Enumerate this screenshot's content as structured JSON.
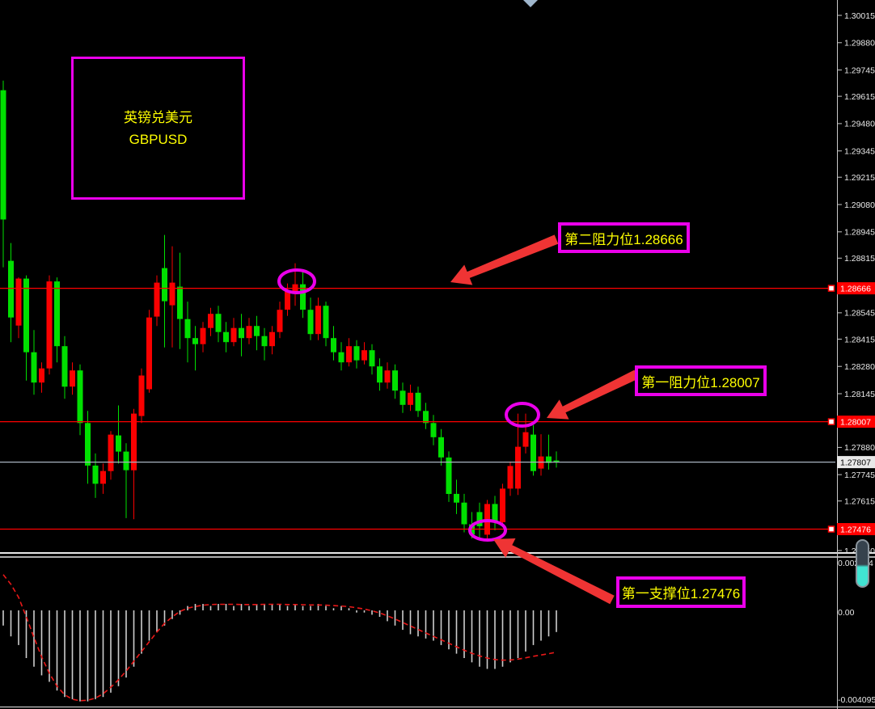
{
  "symbol_box": {
    "name_cn": "英镑兑美元",
    "ticker": "GBPUSD"
  },
  "annotations": {
    "resistance2_label": "第二阻力位1.28666",
    "resistance1_label": "第一阻力位1.28007",
    "support1_label": "第一支撑位1.27476"
  },
  "price_axis": {
    "labels": [
      "1.30015",
      "1.29880",
      "1.29745",
      "1.29615",
      "1.29480",
      "1.29345",
      "1.29215",
      "1.29080",
      "1.28945",
      "1.28815",
      "1.28545",
      "1.28415",
      "1.28280",
      "1.28145",
      "1.27880",
      "1.27745",
      "1.27615",
      "1.27350"
    ],
    "level_badges": [
      "1.28666",
      "1.28007",
      "1.27476"
    ],
    "current_badge": "1.27807"
  },
  "indicator_axis": {
    "top": "0.002264",
    "zero": "0.00",
    "bottom": "-0.004095"
  },
  "colors": {
    "up_candle": "#fa0000",
    "down_candle": "#00e000",
    "level_line": "#ff0000",
    "current_line": "#aab4c2",
    "annotation": "#ea00ea",
    "arrow": "#ef3434",
    "label_text": "#ffff00",
    "axis_text": "#e8e8e8",
    "histogram": "#cdcdcd",
    "signal": "#e81818",
    "badge_level_bg": "#ff0000",
    "badge_current_bg": "#e8e8e8"
  },
  "chart_data": {
    "type": "candlestick",
    "title": "GBPUSD 英镑兑美元",
    "up_means": "red = bullish, green = bearish (CN convention)",
    "y_axis_range": [
      1.2735,
      1.30015
    ],
    "levels": {
      "resistance2": 1.28666,
      "resistance1": 1.28007,
      "support1": 1.27476,
      "current": 1.27807
    },
    "candles": [
      [
        1.29645,
        1.29692,
        1.2877,
        1.29006
      ],
      [
        1.28802,
        1.2889,
        1.284,
        1.28522
      ],
      [
        1.28482,
        1.2872,
        1.2842,
        1.28714
      ],
      [
        1.28714,
        1.2873,
        1.2821,
        1.2835
      ],
      [
        1.2835,
        1.2846,
        1.2814,
        1.282
      ],
      [
        1.282,
        1.283,
        1.2815,
        1.2827
      ],
      [
        1.2827,
        1.2873,
        1.2824,
        1.287
      ],
      [
        1.287,
        1.2872,
        1.283,
        1.2838
      ],
      [
        1.2838,
        1.2843,
        1.2812,
        1.2818
      ],
      [
        1.2818,
        1.283,
        1.2814,
        1.2826
      ],
      [
        1.2826,
        1.2829,
        1.2794,
        1.28
      ],
      [
        1.28,
        1.2806,
        1.277,
        1.2779
      ],
      [
        1.2779,
        1.2785,
        1.2763,
        1.277
      ],
      [
        1.277,
        1.278,
        1.2765,
        1.27763
      ],
      [
        1.27763,
        1.2796,
        1.2772,
        1.27943
      ],
      [
        1.27939,
        1.28087,
        1.278,
        1.27859
      ],
      [
        1.27859,
        1.279,
        1.2753,
        1.27767
      ],
      [
        1.27767,
        1.2807,
        1.27525,
        1.28047
      ],
      [
        1.28035,
        1.2827,
        1.28,
        1.28235
      ],
      [
        1.28167,
        1.2856,
        1.2815,
        1.28522
      ],
      [
        1.28526,
        1.2873,
        1.2848,
        1.28694
      ],
      [
        1.28766,
        1.2893,
        1.28374,
        1.28602
      ],
      [
        1.28582,
        1.28874,
        1.28374,
        1.28694
      ],
      [
        1.28674,
        1.28842,
        1.28366,
        1.28514
      ],
      [
        1.28514,
        1.286,
        1.283,
        1.2842
      ],
      [
        1.2842,
        1.2848,
        1.2826,
        1.2839
      ],
      [
        1.2839,
        1.285,
        1.2835,
        1.2847
      ],
      [
        1.2847,
        1.2857,
        1.2843,
        1.2854
      ],
      [
        1.2854,
        1.2858,
        1.284,
        1.2845
      ],
      [
        1.2845,
        1.285,
        1.2835,
        1.284
      ],
      [
        1.284,
        1.2852,
        1.2838,
        1.2847
      ],
      [
        1.2847,
        1.2854,
        1.2833,
        1.2842
      ],
      [
        1.2842,
        1.2852,
        1.2839,
        1.2848
      ],
      [
        1.2848,
        1.2853,
        1.2836,
        1.2843
      ],
      [
        1.2843,
        1.2847,
        1.2831,
        1.2838
      ],
      [
        1.2838,
        1.2848,
        1.2834,
        1.2845
      ],
      [
        1.2845,
        1.286,
        1.2842,
        1.2856
      ],
      [
        1.2856,
        1.2869,
        1.2853,
        1.2865
      ],
      [
        1.2865,
        1.2879,
        1.2858,
        1.28686
      ],
      [
        1.28686,
        1.2876,
        1.2852,
        1.2856
      ],
      [
        1.2856,
        1.2862,
        1.2841,
        1.2844
      ],
      [
        1.2844,
        1.2862,
        1.2841,
        1.2858
      ],
      [
        1.2858,
        1.286,
        1.2838,
        1.2842
      ],
      [
        1.2842,
        1.2848,
        1.2831,
        1.2835
      ],
      [
        1.2835,
        1.284,
        1.2826,
        1.283
      ],
      [
        1.283,
        1.2842,
        1.2828,
        1.2838
      ],
      [
        1.2838,
        1.2841,
        1.2827,
        1.2831
      ],
      [
        1.2831,
        1.284,
        1.2829,
        1.2836
      ],
      [
        1.2836,
        1.2839,
        1.2824,
        1.2828
      ],
      [
        1.2828,
        1.2832,
        1.2816,
        1.282
      ],
      [
        1.282,
        1.283,
        1.2817,
        1.2826
      ],
      [
        1.2826,
        1.2829,
        1.2812,
        1.2816
      ],
      [
        1.2816,
        1.282,
        1.2805,
        1.2809
      ],
      [
        1.2809,
        1.2819,
        1.2806,
        1.2815
      ],
      [
        1.2815,
        1.2818,
        1.2803,
        1.2806
      ],
      [
        1.2806,
        1.281,
        1.2797,
        1.28
      ],
      [
        1.28,
        1.2804,
        1.2789,
        1.2793
      ],
      [
        1.2793,
        1.2797,
        1.2779,
        1.2783
      ],
      [
        1.2783,
        1.2786,
        1.2761,
        1.2765
      ],
      [
        1.2765,
        1.2772,
        1.2755,
        1.27607
      ],
      [
        1.27607,
        1.2765,
        1.2746,
        1.275
      ],
      [
        1.275,
        1.2756,
        1.2743,
        1.2745
      ],
      [
        1.2756,
        1.27607,
        1.27424,
        1.2749
      ],
      [
        1.27448,
        1.2762,
        1.27428,
        1.276
      ],
      [
        1.276,
        1.2764,
        1.2747,
        1.2751
      ],
      [
        1.2751,
        1.277,
        1.2749,
        1.27676
      ],
      [
        1.27676,
        1.2781,
        1.2764,
        1.27788
      ],
      [
        1.27676,
        1.28047,
        1.27645,
        1.27883
      ],
      [
        1.27883,
        1.28047,
        1.2785,
        1.27955
      ],
      [
        1.27943,
        1.2799,
        1.2774,
        1.27763
      ],
      [
        1.27775,
        1.27945,
        1.2774,
        1.27835
      ],
      [
        1.27835,
        1.27943,
        1.2777,
        1.27803
      ],
      [
        1.27815,
        1.2786,
        1.2778,
        1.27807
      ]
    ],
    "indicator": {
      "type": "macd_histogram_with_signal",
      "range": [
        -0.004095,
        0.002264
      ],
      "histogram": [
        -0.0007,
        -0.0012,
        -0.0016,
        -0.0022,
        -0.0026,
        -0.003,
        -0.0033,
        -0.0037,
        -0.004,
        -0.0041,
        -0.0042,
        -0.0042,
        -0.0041,
        -0.004,
        -0.0038,
        -0.0035,
        -0.0031,
        -0.0026,
        -0.002,
        -0.0014,
        -0.001,
        -0.0007,
        -0.0004,
        -0.0002,
        0.0002,
        0.0003,
        0.0003,
        0.0002,
        0.0003,
        0.0003,
        0.0002,
        0.0003,
        0.0002,
        0.0003,
        0.0003,
        0.0003,
        0.0003,
        0.0002,
        0.0003,
        0.0002,
        0.0002,
        0.0003,
        0.0002,
        0.0001,
        0.0002,
        0.0001,
        -0.0001,
        -0.0001,
        -0.0002,
        -0.0003,
        -0.0005,
        -0.0007,
        -0.0009,
        -0.0011,
        -0.0012,
        -0.0013,
        -0.0014,
        -0.0016,
        -0.0018,
        -0.002,
        -0.0022,
        -0.0024,
        -0.0026,
        -0.0027,
        -0.0027,
        -0.0026,
        -0.0024,
        -0.0022,
        -0.0019,
        -0.0016,
        -0.0014,
        -0.0012,
        -0.001
      ],
      "signal": [
        0.00165,
        0.0012,
        0.0006,
        -0.0003,
        -0.00125,
        -0.00215,
        -0.0029,
        -0.0035,
        -0.0039,
        -0.0041,
        -0.00417,
        -0.00415,
        -0.00405,
        -0.00385,
        -0.00355,
        -0.0032,
        -0.0028,
        -0.00235,
        -0.0019,
        -0.00145,
        -0.001,
        -0.0006,
        -0.0003,
        -5e-05,
        0.0001,
        0.00018,
        0.00024,
        0.00027,
        0.00028,
        0.00028,
        0.00028,
        0.00027,
        0.00027,
        0.00027,
        0.00028,
        0.00028,
        0.00028,
        0.00027,
        0.00027,
        0.00026,
        0.00025,
        0.00025,
        0.00024,
        0.00022,
        0.0002,
        0.00017,
        0.00012,
        6e-05,
        -2e-05,
        -0.00012,
        -0.00025,
        -0.0004,
        -0.00056,
        -0.00072,
        -0.00088,
        -0.00104,
        -0.0012,
        -0.00136,
        -0.00152,
        -0.00168,
        -0.00184,
        -0.00198,
        -0.0021,
        -0.0022,
        -0.00227,
        -0.0023,
        -0.00229,
        -0.00225,
        -0.00219,
        -0.00212,
        -0.00206,
        -0.002,
        -0.00193
      ]
    }
  }
}
